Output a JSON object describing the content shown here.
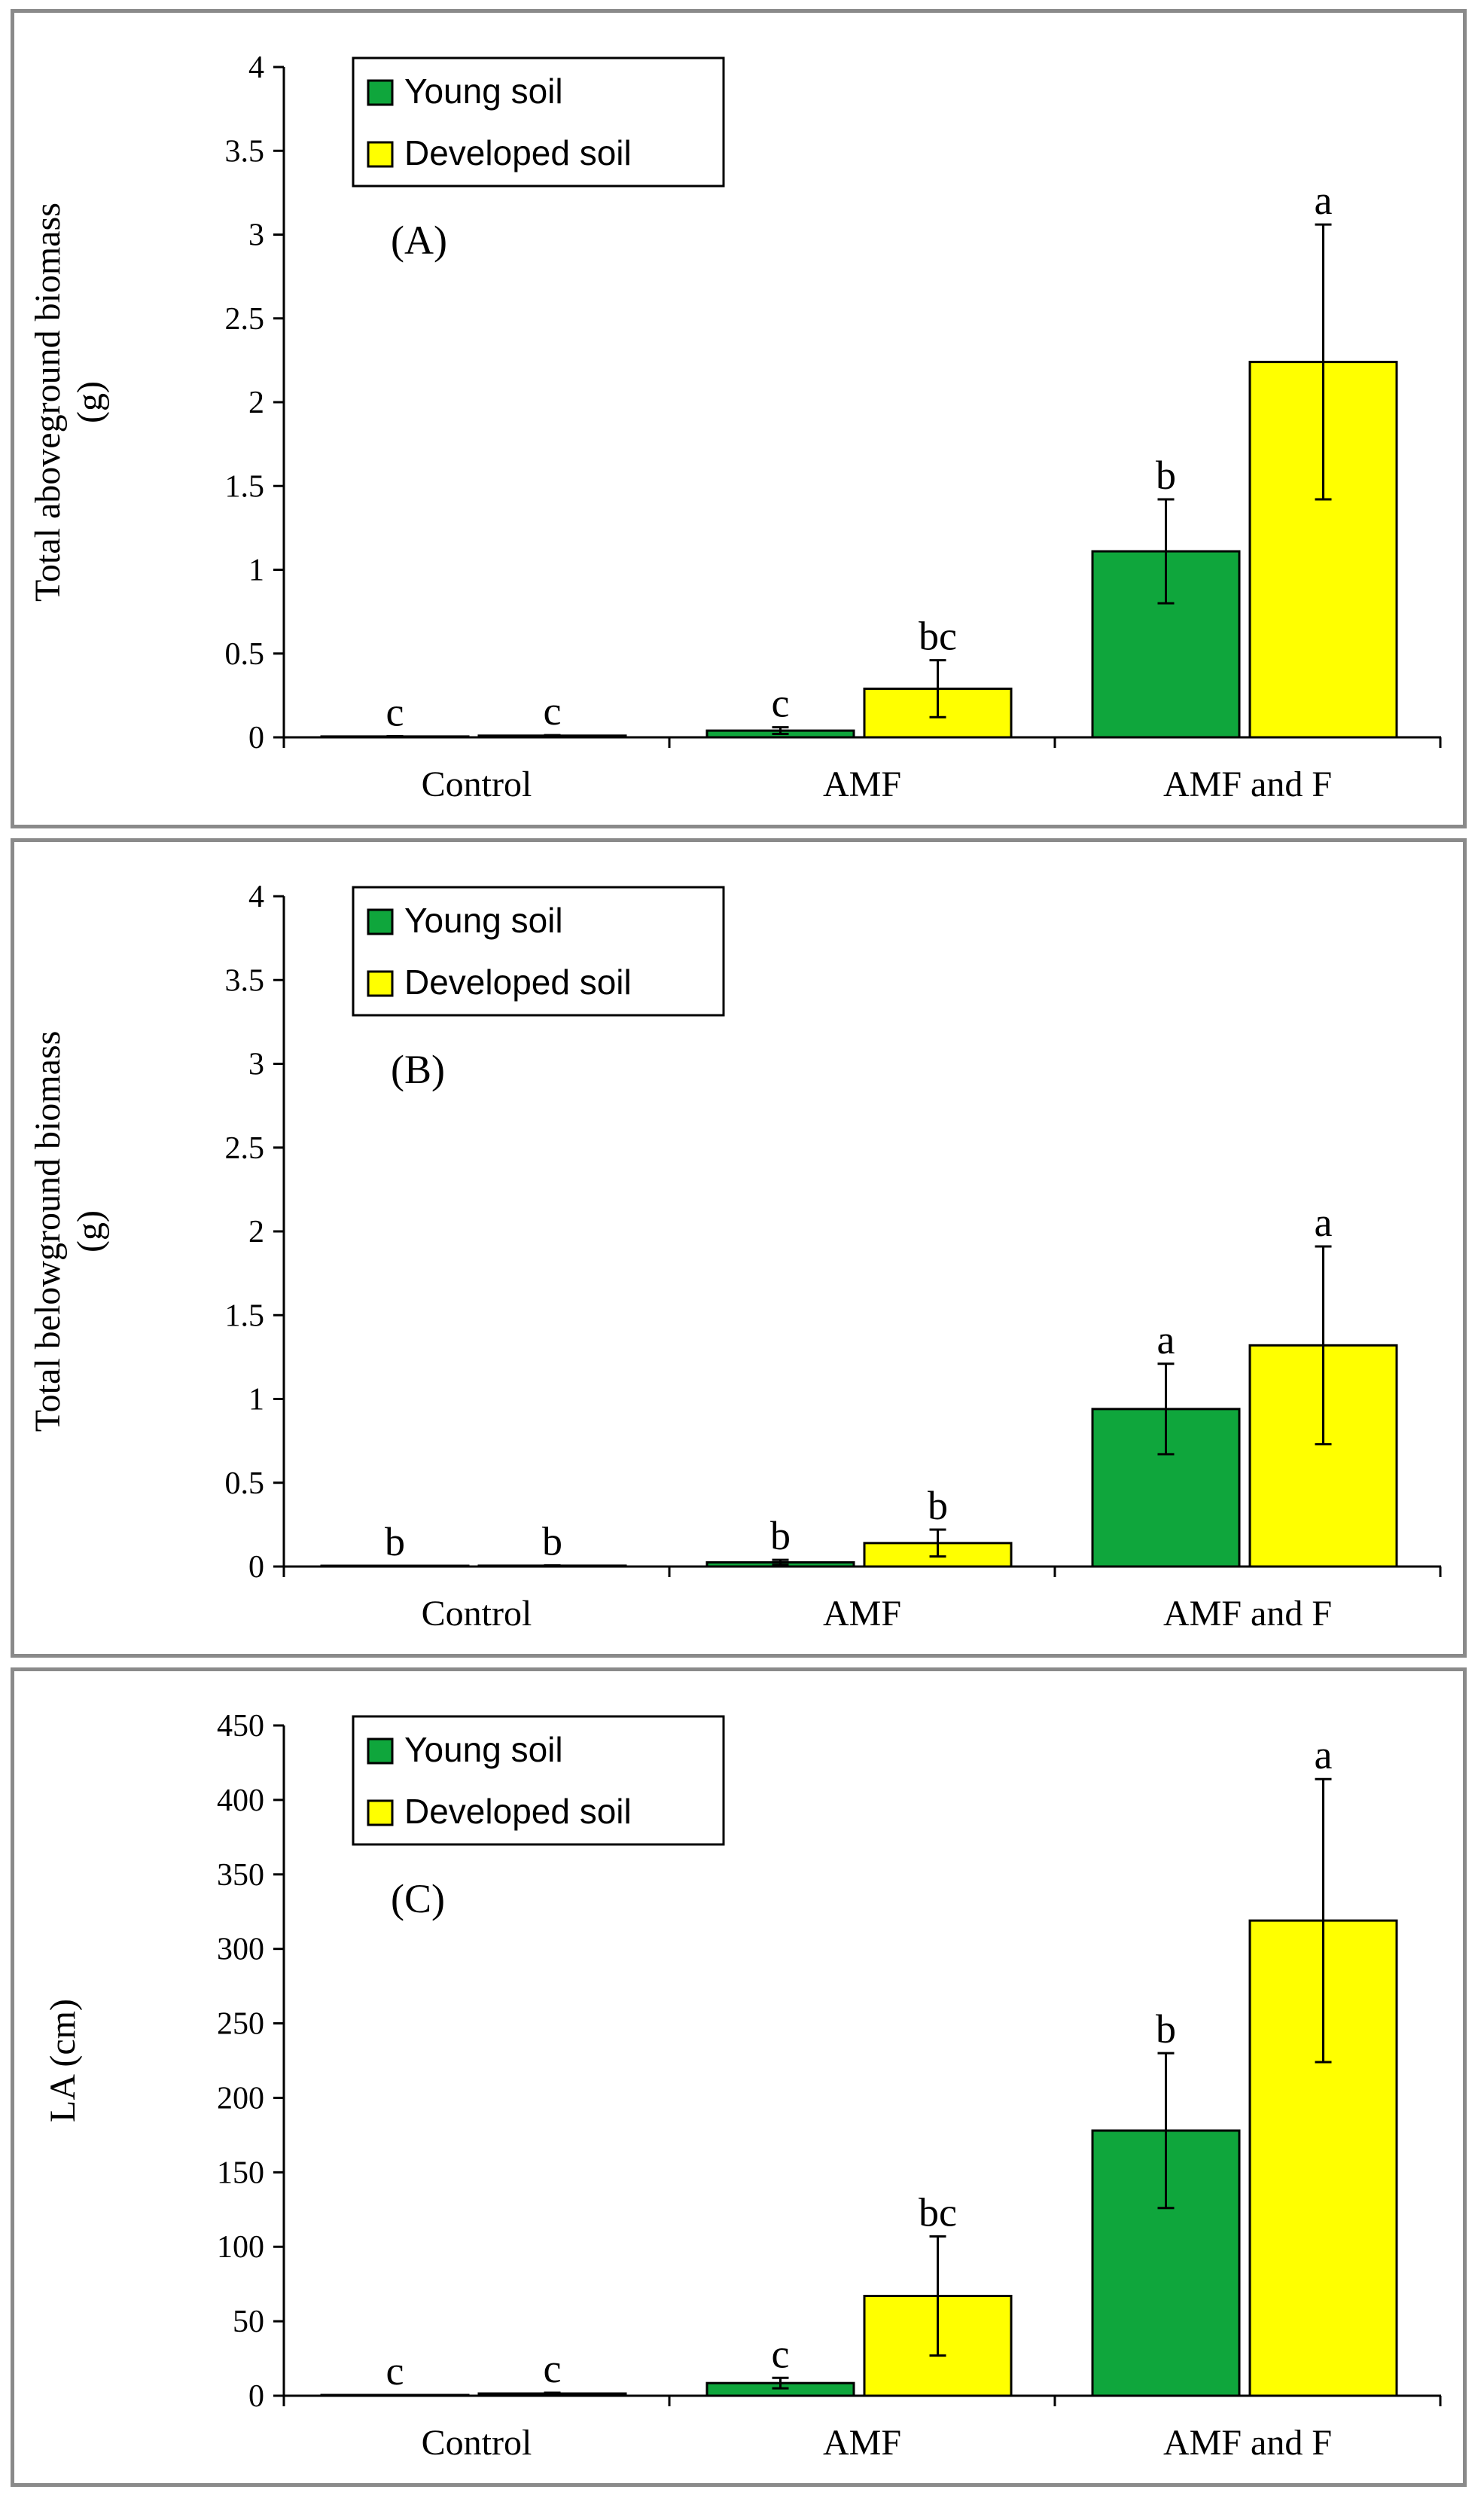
{
  "chart_data": [
    {
      "type": "bar",
      "panel_label": "(A)",
      "ylabel": [
        "Total aboveground biomass",
        "(g)"
      ],
      "categories": [
        "Control",
        "AMF",
        "AMF and F"
      ],
      "ylim": [
        0,
        4
      ],
      "yticks": [
        0,
        0.5,
        1,
        1.5,
        2,
        2.5,
        3,
        3.5,
        4
      ],
      "ytick_labels": [
        "0",
        "0.5",
        "1",
        "1.5",
        "2",
        "2.5",
        "3",
        "3.5",
        "4"
      ],
      "legend_position": "top-left",
      "series": [
        {
          "name": "Young soil",
          "color": "#0fa63c",
          "values": [
            0.005,
            0.04,
            1.11
          ],
          "errors": [
            0.002,
            0.02,
            0.31
          ],
          "letters": [
            "c",
            "c",
            "b"
          ]
        },
        {
          "name": "Developed soil",
          "color": "#ffff00",
          "values": [
            0.01,
            0.29,
            2.24
          ],
          "errors": [
            0.003,
            0.17,
            0.82
          ],
          "letters": [
            "c",
            "bc",
            "a"
          ]
        }
      ]
    },
    {
      "type": "bar",
      "panel_label": "(B)",
      "ylabel": [
        "Total belowground biomass",
        "(g)"
      ],
      "categories": [
        "Control",
        "AMF",
        "AMF and F"
      ],
      "ylim": [
        0,
        4
      ],
      "yticks": [
        0,
        0.5,
        1,
        1.5,
        2,
        2.5,
        3,
        3.5,
        4
      ],
      "ytick_labels": [
        "0",
        "0.5",
        "1",
        "1.5",
        "2",
        "2.5",
        "3",
        "3.5",
        "4"
      ],
      "legend_position": "top-left",
      "series": [
        {
          "name": "Young soil",
          "color": "#0fa63c",
          "values": [
            0.003,
            0.025,
            0.94
          ],
          "errors": [
            0.001,
            0.015,
            0.27
          ],
          "letters": [
            "b",
            "b",
            "a"
          ]
        },
        {
          "name": "Developed soil",
          "color": "#ffff00",
          "values": [
            0.005,
            0.14,
            1.32
          ],
          "errors": [
            0.002,
            0.08,
            0.59
          ],
          "letters": [
            "b",
            "b",
            "a"
          ]
        }
      ]
    },
    {
      "type": "bar",
      "panel_label": "(C)",
      "ylabel": [
        "LA (cm)"
      ],
      "categories": [
        "Control",
        "AMF",
        "AMF and F"
      ],
      "ylim": [
        0,
        450
      ],
      "yticks": [
        0,
        50,
        100,
        150,
        200,
        250,
        300,
        350,
        400,
        450
      ],
      "ytick_labels": [
        "0",
        "50",
        "100",
        "150",
        "200",
        "250",
        "300",
        "350",
        "400",
        "450"
      ],
      "legend_position": "top-left",
      "series": [
        {
          "name": "Young soil",
          "color": "#0fa63c",
          "values": [
            0.3,
            8.5,
            178
          ],
          "errors": [
            0.2,
            3.5,
            52
          ],
          "letters": [
            "c",
            "c",
            "b"
          ]
        },
        {
          "name": "Developed soil",
          "color": "#ffff00",
          "values": [
            1.5,
            67,
            319
          ],
          "errors": [
            0.5,
            40,
            95
          ],
          "letters": [
            "c",
            "bc",
            "a"
          ]
        }
      ]
    }
  ]
}
